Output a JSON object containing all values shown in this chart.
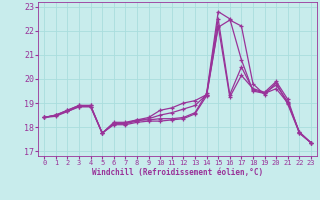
{
  "xlabel": "Windchill (Refroidissement éolien,°C)",
  "background_color": "#c8ecec",
  "line_color": "#993399",
  "grid_color": "#aadddd",
  "xlim": [
    -0.5,
    23.5
  ],
  "ylim": [
    16.8,
    23.2
  ],
  "yticks": [
    17,
    18,
    19,
    20,
    21,
    22,
    23
  ],
  "xticks": [
    0,
    1,
    2,
    3,
    4,
    5,
    6,
    7,
    8,
    9,
    10,
    11,
    12,
    13,
    14,
    15,
    16,
    17,
    18,
    19,
    20,
    21,
    22,
    23
  ],
  "series": [
    {
      "x": [
        0,
        1,
        2,
        3,
        4,
        5,
        6,
        7,
        8,
        9,
        10,
        11,
        12,
        13,
        14,
        15,
        16,
        17,
        18,
        19,
        20,
        21,
        22,
        23
      ],
      "y": [
        18.4,
        18.5,
        18.7,
        18.9,
        18.9,
        17.75,
        18.15,
        18.15,
        18.3,
        18.3,
        18.35,
        18.35,
        18.4,
        18.6,
        19.4,
        22.8,
        22.5,
        20.8,
        19.5,
        19.4,
        19.6,
        19.0,
        17.8,
        17.35
      ]
    },
    {
      "x": [
        0,
        1,
        2,
        3,
        4,
        5,
        6,
        7,
        8,
        9,
        10,
        11,
        12,
        13,
        14,
        15,
        16,
        17,
        18,
        19,
        20,
        21,
        22,
        23
      ],
      "y": [
        18.4,
        18.5,
        18.7,
        18.9,
        18.9,
        17.75,
        18.2,
        18.2,
        18.3,
        18.4,
        18.7,
        18.8,
        19.0,
        19.1,
        19.35,
        22.2,
        19.25,
        20.15,
        19.6,
        19.45,
        19.9,
        19.15,
        17.75,
        17.35
      ]
    },
    {
      "x": [
        0,
        1,
        2,
        3,
        4,
        5,
        6,
        7,
        8,
        9,
        10,
        11,
        12,
        13,
        14,
        15,
        16,
        17,
        18,
        19,
        20,
        21,
        22,
        23
      ],
      "y": [
        18.4,
        18.5,
        18.65,
        18.85,
        18.85,
        17.75,
        18.15,
        18.15,
        18.25,
        18.35,
        18.5,
        18.6,
        18.75,
        18.9,
        19.35,
        22.5,
        19.35,
        20.5,
        19.55,
        19.42,
        19.75,
        19.05,
        17.78,
        17.35
      ]
    },
    {
      "x": [
        0,
        1,
        2,
        3,
        4,
        5,
        6,
        7,
        8,
        9,
        10,
        11,
        12,
        13,
        14,
        15,
        16,
        17,
        18,
        19,
        20,
        21,
        22,
        23
      ],
      "y": [
        18.4,
        18.45,
        18.65,
        18.85,
        18.85,
        17.75,
        18.1,
        18.1,
        18.2,
        18.25,
        18.25,
        18.3,
        18.35,
        18.55,
        19.3,
        22.15,
        22.45,
        22.2,
        19.8,
        19.35,
        19.85,
        18.95,
        17.75,
        17.35
      ]
    }
  ]
}
